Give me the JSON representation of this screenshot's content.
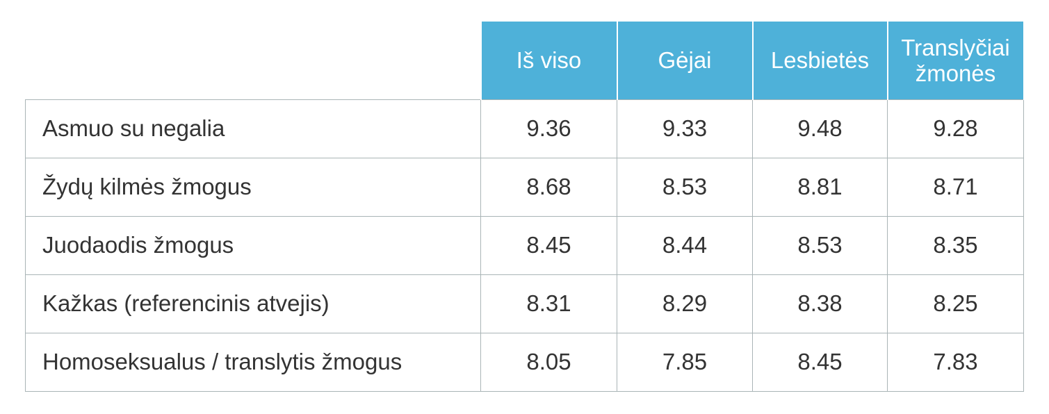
{
  "colors": {
    "header_bg": "#4EB1D9",
    "header_text": "#FFFFFF",
    "border": "#A9B4B6",
    "text": "#333333"
  },
  "chart_data": {
    "type": "table",
    "columns": [
      "Iš viso",
      "Gėjai",
      "Lesbietės",
      "Translyčiai žmonės"
    ],
    "rows": [
      {
        "label": "Asmuo su negalia",
        "values": [
          "9.36",
          "9.33",
          "9.48",
          "9.28"
        ]
      },
      {
        "label": "Žydų kilmės žmogus",
        "values": [
          "8.68",
          "8.53",
          "8.81",
          "8.71"
        ]
      },
      {
        "label": "Juodaodis žmogus",
        "values": [
          "8.45",
          "8.44",
          "8.53",
          "8.35"
        ]
      },
      {
        "label": "Kažkas (referencinis atvejis)",
        "values": [
          "8.31",
          "8.29",
          "8.38",
          "8.25"
        ]
      },
      {
        "label": "Homoseksualus / translytis žmogus",
        "values": [
          "8.05",
          "7.85",
          "8.45",
          "7.83"
        ]
      }
    ]
  }
}
